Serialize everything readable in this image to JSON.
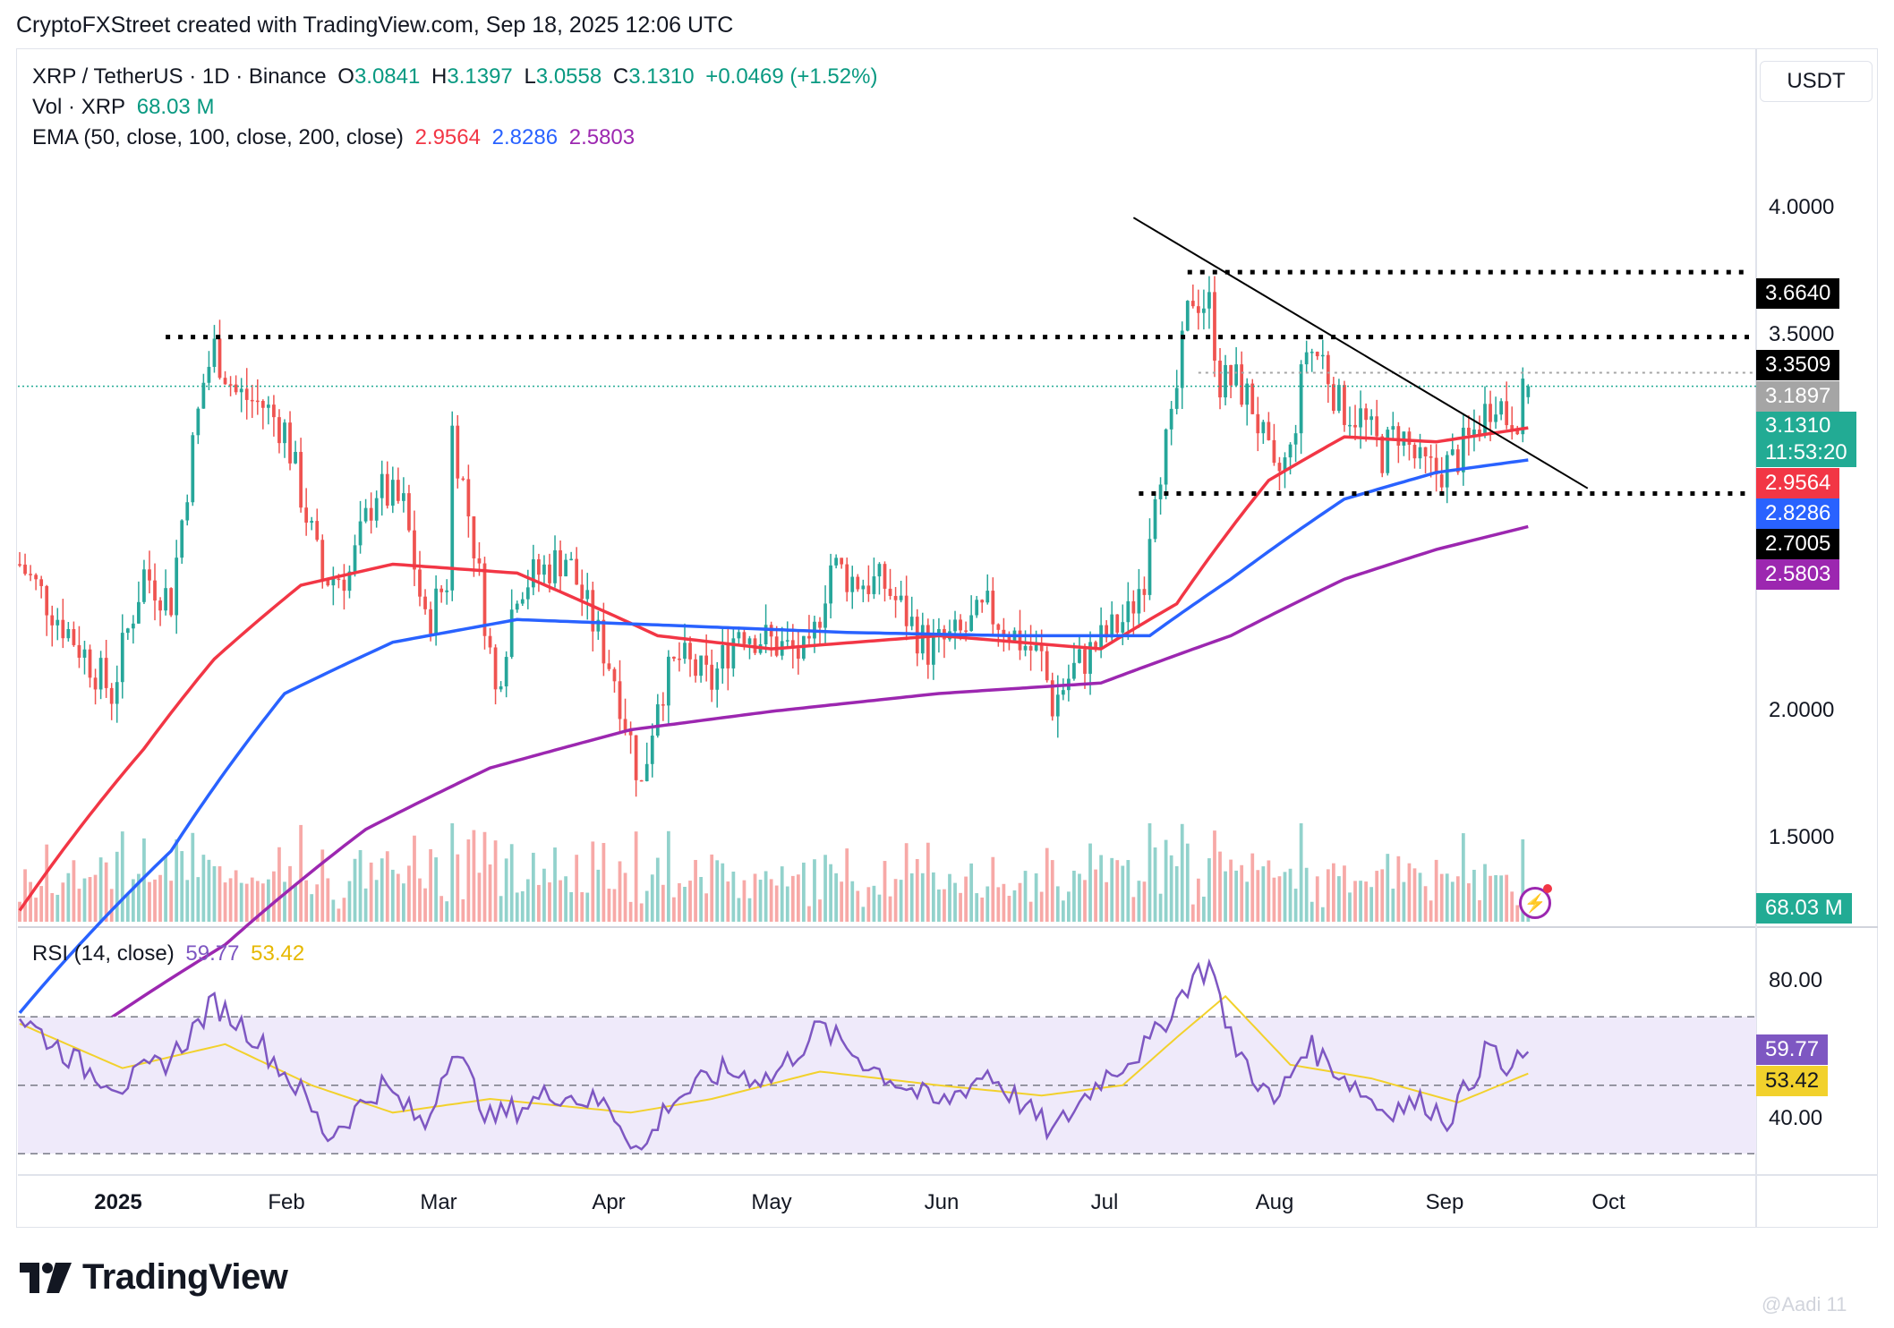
{
  "header": "CryptoFXStreet created with TradingView.com, Sep 18, 2025 12:06 UTC",
  "legend": {
    "symbol": "XRP / TetherUS · 1D · Binance",
    "o_label": "O",
    "o": "3.0841",
    "h_label": "H",
    "h": "3.1397",
    "l_label": "L",
    "l": "3.0558",
    "c_label": "C",
    "c": "3.1310",
    "change": "+0.0469 (+1.52%)",
    "vol_label": "Vol · XRP",
    "vol": "68.03 M",
    "ema_label": "EMA (50, close, 100, close, 200, close)",
    "ema50": "2.9564",
    "ema100": "2.8286",
    "ema200": "2.5803",
    "rsi_label": "RSI (14, close)",
    "rsi": "59.77",
    "rsi_ma": "53.42"
  },
  "currency": "USDT",
  "price_axis": [
    "4.0000",
    "3.5000",
    "2.0000",
    "1.5000"
  ],
  "rsi_axis": [
    "80.00",
    "40.00"
  ],
  "time_axis": [
    "2025",
    "Feb",
    "Mar",
    "Apr",
    "May",
    "Jun",
    "Jul",
    "Aug",
    "Sep",
    "Oct"
  ],
  "tags": {
    "resistance_high": "3.6640",
    "resistance_mid": "3.3509",
    "last_high": "3.1897",
    "last_price": "3.1310",
    "countdown": "11:53:20",
    "ema50": "2.9564",
    "ema100": "2.8286",
    "support": "2.7005",
    "ema200": "2.5803",
    "volume": "68.03 M",
    "rsi": "59.77",
    "rsi_ma": "53.42"
  },
  "colors": {
    "up": "#26a69a",
    "down": "#ef5350",
    "ema50": "#f23645",
    "ema100": "#2962ff",
    "ema200": "#9c27b0",
    "rsi": "#7e57c2",
    "rsi_ma": "#f2d12c",
    "rsi_band": "#efeafa",
    "last_price": "#22ab94"
  },
  "footer": {
    "brand": "TradingView",
    "watermark": "@Aadi 11"
  },
  "chart_data": {
    "type": "candlestick",
    "title": "XRP / TetherUS · 1D · Binance",
    "scale": "log",
    "ylim": [
      1.3,
      4.5
    ],
    "x_range": [
      "2024-12-13",
      "2025-10-29"
    ],
    "anchors": [
      [
        "2024-12-13",
        2.45
      ],
      [
        "2024-12-20",
        2.28
      ],
      [
        "2024-12-30",
        2.05
      ],
      [
        "2025-01-05",
        2.42
      ],
      [
        "2025-01-10",
        2.33
      ],
      [
        "2025-01-16",
        3.15
      ],
      [
        "2025-01-18",
        3.3
      ],
      [
        "2025-01-22",
        3.1
      ],
      [
        "2025-01-27",
        3.05
      ],
      [
        "2025-01-31",
        2.95
      ],
      [
        "2025-02-03",
        2.7
      ],
      [
        "2025-02-07",
        2.4
      ],
      [
        "2025-02-12",
        2.42
      ],
      [
        "2025-02-17",
        2.72
      ],
      [
        "2025-02-22",
        2.65
      ],
      [
        "2025-02-26",
        2.25
      ],
      [
        "2025-03-02",
        2.4
      ],
      [
        "2025-03-03",
        2.95
      ],
      [
        "2025-03-07",
        2.52
      ],
      [
        "2025-03-11",
        2.05
      ],
      [
        "2025-03-15",
        2.38
      ],
      [
        "2025-03-19",
        2.42
      ],
      [
        "2025-03-24",
        2.48
      ],
      [
        "2025-03-28",
        2.3
      ],
      [
        "2025-04-02",
        2.1
      ],
      [
        "2025-04-07",
        1.8
      ],
      [
        "2025-04-10",
        2.05
      ],
      [
        "2025-04-14",
        2.15
      ],
      [
        "2025-04-20",
        2.08
      ],
      [
        "2025-04-25",
        2.25
      ],
      [
        "2025-05-01",
        2.2
      ],
      [
        "2025-05-08",
        2.15
      ],
      [
        "2025-05-12",
        2.45
      ],
      [
        "2025-05-16",
        2.4
      ],
      [
        "2025-05-22",
        2.38
      ],
      [
        "2025-05-30",
        2.18
      ],
      [
        "2025-06-05",
        2.22
      ],
      [
        "2025-06-10",
        2.3
      ],
      [
        "2025-06-15",
        2.22
      ],
      [
        "2025-06-20",
        2.15
      ],
      [
        "2025-06-22",
        2.02
      ],
      [
        "2025-06-26",
        2.12
      ],
      [
        "2025-07-02",
        2.22
      ],
      [
        "2025-07-06",
        2.28
      ],
      [
        "2025-07-09",
        2.42
      ],
      [
        "2025-07-11",
        2.75
      ],
      [
        "2025-07-14",
        2.95
      ],
      [
        "2025-07-17",
        3.45
      ],
      [
        "2025-07-18",
        3.55
      ],
      [
        "2025-07-21",
        3.5
      ],
      [
        "2025-07-23",
        3.15
      ],
      [
        "2025-07-26",
        3.15
      ],
      [
        "2025-07-29",
        3.05
      ],
      [
        "2025-08-02",
        2.75
      ],
      [
        "2025-08-05",
        2.85
      ],
      [
        "2025-08-08",
        3.3
      ],
      [
        "2025-08-11",
        3.25
      ],
      [
        "2025-08-14",
        3.05
      ],
      [
        "2025-08-18",
        3.0
      ],
      [
        "2025-08-22",
        2.85
      ],
      [
        "2025-08-25",
        2.95
      ],
      [
        "2025-08-29",
        2.8
      ],
      [
        "2025-09-01",
        2.78
      ],
      [
        "2025-09-04",
        2.82
      ],
      [
        "2025-09-07",
        2.9
      ],
      [
        "2025-09-10",
        3.02
      ],
      [
        "2025-09-12",
        3.1
      ],
      [
        "2025-09-14",
        3.0
      ],
      [
        "2025-09-16",
        3.02
      ],
      [
        "2025-09-18",
        3.131
      ]
    ],
    "last_candle": {
      "date": "2025-09-18",
      "open": 3.0841,
      "high": 3.1397,
      "low": 3.0558,
      "close": 3.131
    },
    "horizontal_levels": [
      3.664,
      3.3509,
      2.7005
    ],
    "trendline": {
      "from": [
        "2025-07-07",
        3.95
      ],
      "to": [
        "2025-09-29",
        2.72
      ]
    },
    "ema": {
      "ema50": [
        [
          "2024-12-13",
          1.52
        ],
        [
          "2025-01-05",
          1.9
        ],
        [
          "2025-01-18",
          2.15
        ],
        [
          "2025-02-03",
          2.38
        ],
        [
          "2025-02-20",
          2.45
        ],
        [
          "2025-03-15",
          2.42
        ],
        [
          "2025-04-10",
          2.22
        ],
        [
          "2025-05-01",
          2.18
        ],
        [
          "2025-06-01",
          2.22
        ],
        [
          "2025-07-01",
          2.18
        ],
        [
          "2025-07-15",
          2.32
        ],
        [
          "2025-08-01",
          2.75
        ],
        [
          "2025-08-15",
          2.92
        ],
        [
          "2025-09-01",
          2.9
        ],
        [
          "2025-09-18",
          2.9564
        ]
      ],
      "ema100": [
        [
          "2024-12-13",
          1.32
        ],
        [
          "2025-01-10",
          1.65
        ],
        [
          "2025-01-31",
          2.05
        ],
        [
          "2025-02-20",
          2.2
        ],
        [
          "2025-03-15",
          2.27
        ],
        [
          "2025-04-15",
          2.25
        ],
        [
          "2025-05-15",
          2.23
        ],
        [
          "2025-06-15",
          2.22
        ],
        [
          "2025-07-10",
          2.22
        ],
        [
          "2025-07-25",
          2.4
        ],
        [
          "2025-08-15",
          2.68
        ],
        [
          "2025-09-01",
          2.78
        ],
        [
          "2025-09-18",
          2.8286
        ]
      ],
      "ema200": [
        [
          "2024-12-13",
          1.2
        ],
        [
          "2025-01-20",
          1.45
        ],
        [
          "2025-02-15",
          1.7
        ],
        [
          "2025-03-10",
          1.85
        ],
        [
          "2025-04-05",
          1.95
        ],
        [
          "2025-05-01",
          2.0
        ],
        [
          "2025-06-01",
          2.05
        ],
        [
          "2025-07-01",
          2.08
        ],
        [
          "2025-07-25",
          2.22
        ],
        [
          "2025-08-15",
          2.4
        ],
        [
          "2025-09-01",
          2.5
        ],
        [
          "2025-09-18",
          2.5803
        ]
      ]
    },
    "rsi": {
      "levels": [
        70,
        50,
        30
      ],
      "ylim": [
        25,
        90
      ],
      "rsi": [
        [
          "2024-12-13",
          70
        ],
        [
          "2024-12-25",
          55
        ],
        [
          "2025-01-01",
          50
        ],
        [
          "2025-01-10",
          58
        ],
        [
          "2025-01-18",
          74
        ],
        [
          "2025-01-25",
          65
        ],
        [
          "2025-02-03",
          48
        ],
        [
          "2025-02-08",
          35
        ],
        [
          "2025-02-18",
          50
        ],
        [
          "2025-02-26",
          38
        ],
        [
          "2025-03-03",
          62
        ],
        [
          "2025-03-10",
          40
        ],
        [
          "2025-03-22",
          48
        ],
        [
          "2025-04-01",
          44
        ],
        [
          "2025-04-07",
          30
        ],
        [
          "2025-04-12",
          45
        ],
        [
          "2025-04-22",
          54
        ],
        [
          "2025-05-01",
          52
        ],
        [
          "2025-05-10",
          67
        ],
        [
          "2025-05-20",
          55
        ],
        [
          "2025-06-01",
          44
        ],
        [
          "2025-06-10",
          54
        ],
        [
          "2025-06-22",
          36
        ],
        [
          "2025-07-01",
          52
        ],
        [
          "2025-07-10",
          62
        ],
        [
          "2025-07-18",
          82
        ],
        [
          "2025-07-22",
          85
        ],
        [
          "2025-07-24",
          66
        ],
        [
          "2025-08-02",
          44
        ],
        [
          "2025-08-08",
          62
        ],
        [
          "2025-08-14",
          54
        ],
        [
          "2025-08-22",
          43
        ],
        [
          "2025-08-30",
          45
        ],
        [
          "2025-09-03",
          40
        ],
        [
          "2025-09-07",
          50
        ],
        [
          "2025-09-11",
          62
        ],
        [
          "2025-09-14",
          53
        ],
        [
          "2025-09-18",
          59.77
        ]
      ],
      "rsi_ma": [
        [
          "2024-12-13",
          68
        ],
        [
          "2025-01-01",
          55
        ],
        [
          "2025-01-20",
          62
        ],
        [
          "2025-02-05",
          50
        ],
        [
          "2025-02-20",
          42
        ],
        [
          "2025-03-10",
          46
        ],
        [
          "2025-04-05",
          42
        ],
        [
          "2025-04-20",
          46
        ],
        [
          "2025-05-10",
          54
        ],
        [
          "2025-06-01",
          50
        ],
        [
          "2025-06-20",
          47
        ],
        [
          "2025-07-05",
          50
        ],
        [
          "2025-07-15",
          64
        ],
        [
          "2025-07-24",
          76
        ],
        [
          "2025-08-05",
          56
        ],
        [
          "2025-08-20",
          52
        ],
        [
          "2025-09-05",
          45
        ],
        [
          "2025-09-18",
          53.42
        ]
      ]
    }
  }
}
